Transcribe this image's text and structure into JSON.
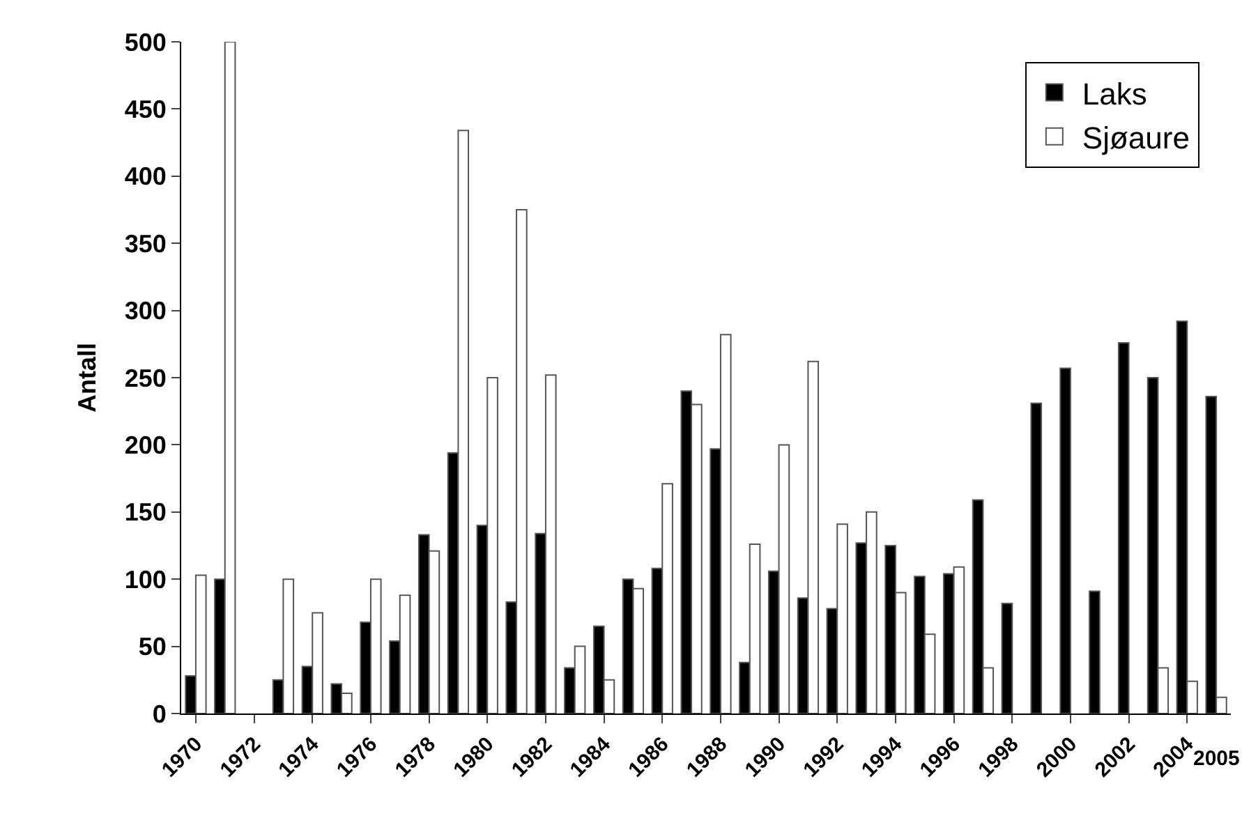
{
  "chart_data": {
    "type": "bar",
    "ylabel": "Antall",
    "categories": [
      "1970",
      null,
      "1972",
      null,
      "1974",
      null,
      "1976",
      null,
      "1978",
      null,
      "1980",
      null,
      "1982",
      null,
      "1984",
      null,
      "1986",
      null,
      "1988",
      null,
      "1990",
      null,
      "1992",
      null,
      "1994",
      null,
      "1996",
      null,
      "1998",
      null,
      "2000",
      null,
      "2002",
      null,
      "2004",
      "2005"
    ],
    "series": [
      {
        "name": "Laks",
        "color": "#000000",
        "values": [
          28,
          100,
          null,
          25,
          35,
          22,
          68,
          54,
          133,
          194,
          140,
          83,
          134,
          34,
          65,
          100,
          108,
          240,
          197,
          38,
          106,
          86,
          78,
          127,
          125,
          102,
          104,
          159,
          82,
          231,
          257,
          91,
          276,
          250,
          292,
          236
        ]
      },
      {
        "name": "Sjøaure",
        "color": "#ffffff",
        "values": [
          103,
          500,
          null,
          100,
          75,
          15,
          100,
          88,
          121,
          434,
          250,
          375,
          252,
          50,
          25,
          93,
          171,
          230,
          282,
          126,
          200,
          262,
          141,
          150,
          90,
          59,
          109,
          34,
          null,
          null,
          null,
          null,
          null,
          34,
          24,
          12
        ]
      }
    ],
    "ylim": [
      0,
      500
    ],
    "yticks": [
      0,
      50,
      100,
      150,
      200,
      250,
      300,
      350,
      400,
      450,
      500
    ],
    "legend": "top right"
  }
}
